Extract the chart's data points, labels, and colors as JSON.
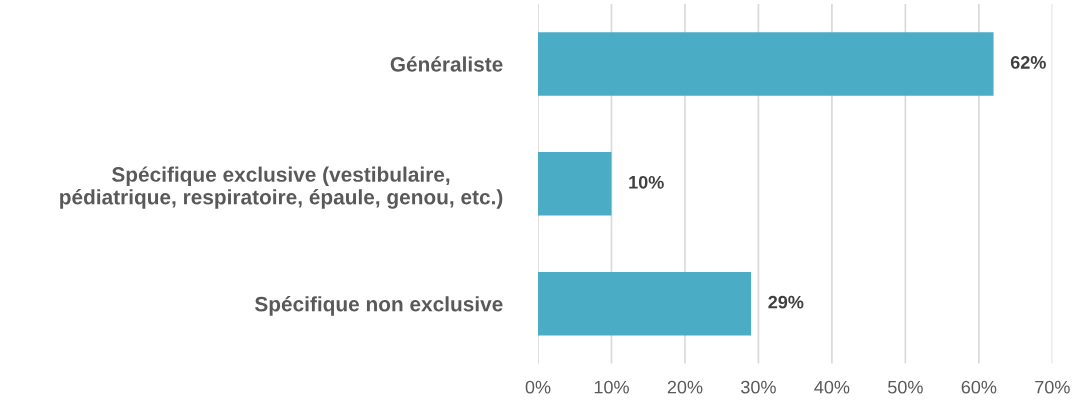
{
  "chart_data": {
    "type": "bar",
    "orientation": "horizontal",
    "categories": [
      "Généraliste",
      "Spécifique exclusive (vestibulaire,\npédiatrique, respiratoire, épaule, genou, etc.)",
      "Spécifique non exclusive"
    ],
    "values": [
      62,
      10,
      29
    ],
    "color": "#4bacc6",
    "value_labels": [
      "62%",
      "10%",
      "29%"
    ],
    "xlim": [
      0,
      70
    ],
    "xticks": [
      {
        "value": 0,
        "label": "0%"
      },
      {
        "value": 10,
        "label": "10%"
      },
      {
        "value": 20,
        "label": "20%"
      },
      {
        "value": 30,
        "label": "30%"
      },
      {
        "value": 40,
        "label": "40%"
      },
      {
        "value": 50,
        "label": "50%"
      },
      {
        "value": 60,
        "label": "60%"
      },
      {
        "value": 70,
        "label": "70%"
      }
    ],
    "grid": "x"
  }
}
